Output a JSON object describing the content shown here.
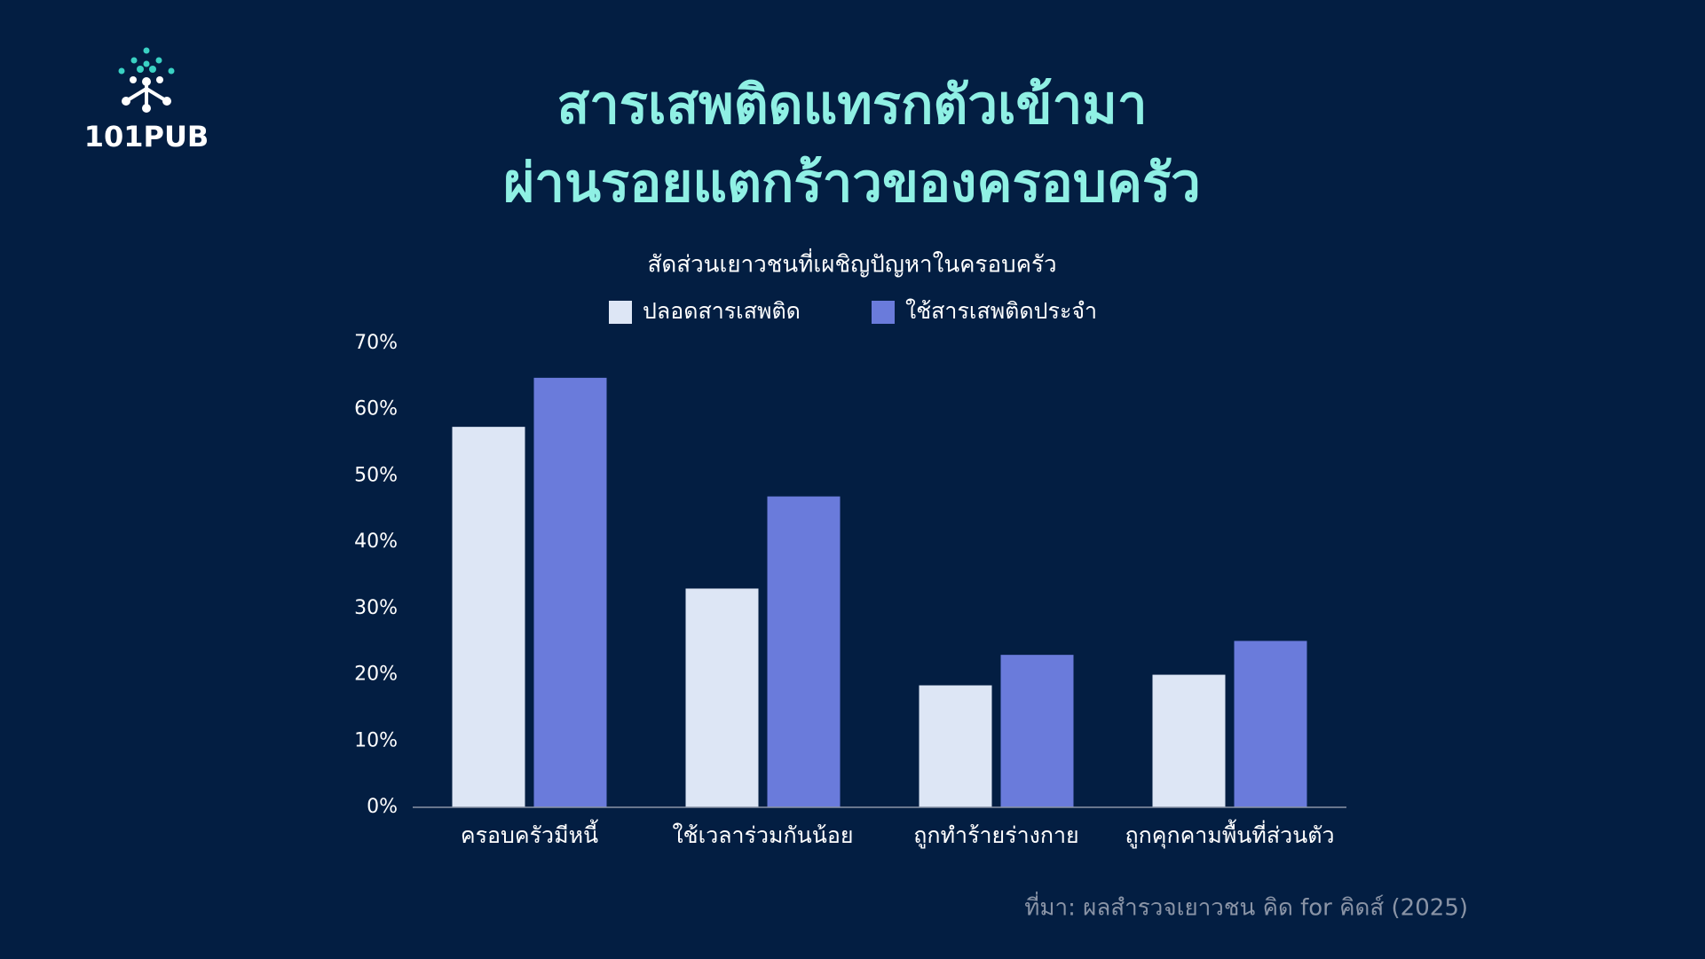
{
  "logo": {
    "text": "101PUB"
  },
  "chart_data": {
    "type": "bar",
    "title": [
      "สารเสพติดแทรกตัวเข้ามา",
      "ผ่านรอยแตกร้าวของครอบครัว"
    ],
    "subtitle": "สัดส่วนเยาวชนที่เผชิญปัญหาในครอบครัว",
    "categories": [
      "ครอบครัวมีหนี้",
      "ใช้เวลาร่วมกันน้อย",
      "ถูกทำร้ายร่างกาย",
      "ถูกคุกคามพื้นที่ส่วนตัว"
    ],
    "series": [
      {
        "name": "ปลอดสารเสพติด",
        "color": "#dde6f5",
        "values": [
          57.4,
          33.0,
          18.4,
          20.0
        ]
      },
      {
        "name": "ใช้สารเสพติดประจำ",
        "color": "#6a7bdb",
        "values": [
          64.8,
          46.9,
          23.0,
          25.1
        ]
      }
    ],
    "ylim": [
      0,
      70
    ],
    "yticks": [
      {
        "value": 0,
        "label": "0%"
      },
      {
        "value": 10,
        "label": "10%"
      },
      {
        "value": 20,
        "label": "20%"
      },
      {
        "value": 30,
        "label": "30%"
      },
      {
        "value": 40,
        "label": "40%"
      },
      {
        "value": 50,
        "label": "50%"
      },
      {
        "value": 60,
        "label": "60%"
      },
      {
        "value": 70,
        "label": "70%"
      }
    ],
    "grid": false,
    "legend": "top",
    "source": "ที่มา: ผลสำรวจเยาวชน คิด for คิดส์ (2025)"
  }
}
